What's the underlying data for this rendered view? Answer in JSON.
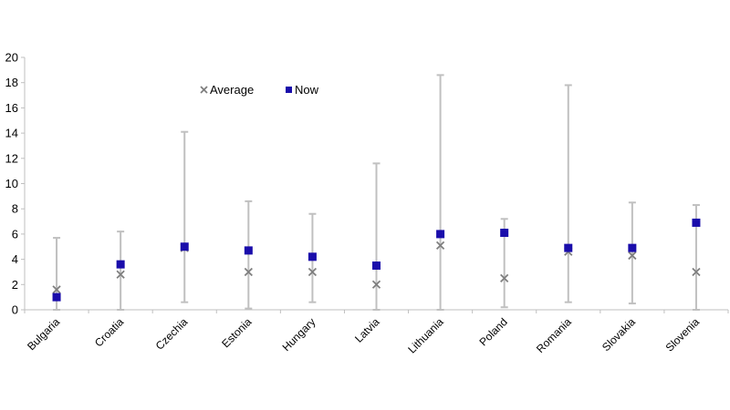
{
  "chart_data": {
    "type": "scatter",
    "title": "",
    "xlabel": "",
    "ylabel": "",
    "ylim": [
      0,
      20
    ],
    "yticks": [
      0,
      2,
      4,
      6,
      8,
      10,
      12,
      14,
      16,
      18,
      20
    ],
    "categories": [
      "Bulgaria",
      "Croatia",
      "Czechia",
      "Estonia",
      "Hungary",
      "Latvia",
      "Lithuania",
      "Poland",
      "Romania",
      "Slovakia",
      "Slovenia"
    ],
    "range": {
      "min": [
        0.0,
        0.0,
        0.6,
        0.1,
        0.6,
        0.0,
        0.0,
        0.2,
        0.6,
        0.5,
        0.0
      ],
      "max": [
        5.7,
        6.2,
        14.1,
        8.6,
        7.6,
        11.6,
        18.6,
        7.2,
        17.8,
        8.5,
        8.3
      ]
    },
    "series": [
      {
        "name": "Average",
        "marker": "x",
        "color": "#7f7f7f",
        "values": [
          1.6,
          2.8,
          4.9,
          3.0,
          3.0,
          2.0,
          5.1,
          2.5,
          4.6,
          4.3,
          3.0
        ]
      },
      {
        "name": "Now",
        "marker": "square",
        "color": "#1a0dab",
        "values": [
          1.0,
          3.6,
          5.0,
          4.7,
          4.2,
          3.5,
          6.0,
          6.1,
          4.9,
          4.9,
          6.9
        ]
      }
    ],
    "legend": {
      "position": "top-left",
      "entries": [
        "Average",
        "Now"
      ]
    },
    "grid": false
  },
  "colors": {
    "axis": "#bfbfbf",
    "whisker": "#c0c0c0",
    "average": "#7f7f7f",
    "now": "#1a0dab"
  }
}
